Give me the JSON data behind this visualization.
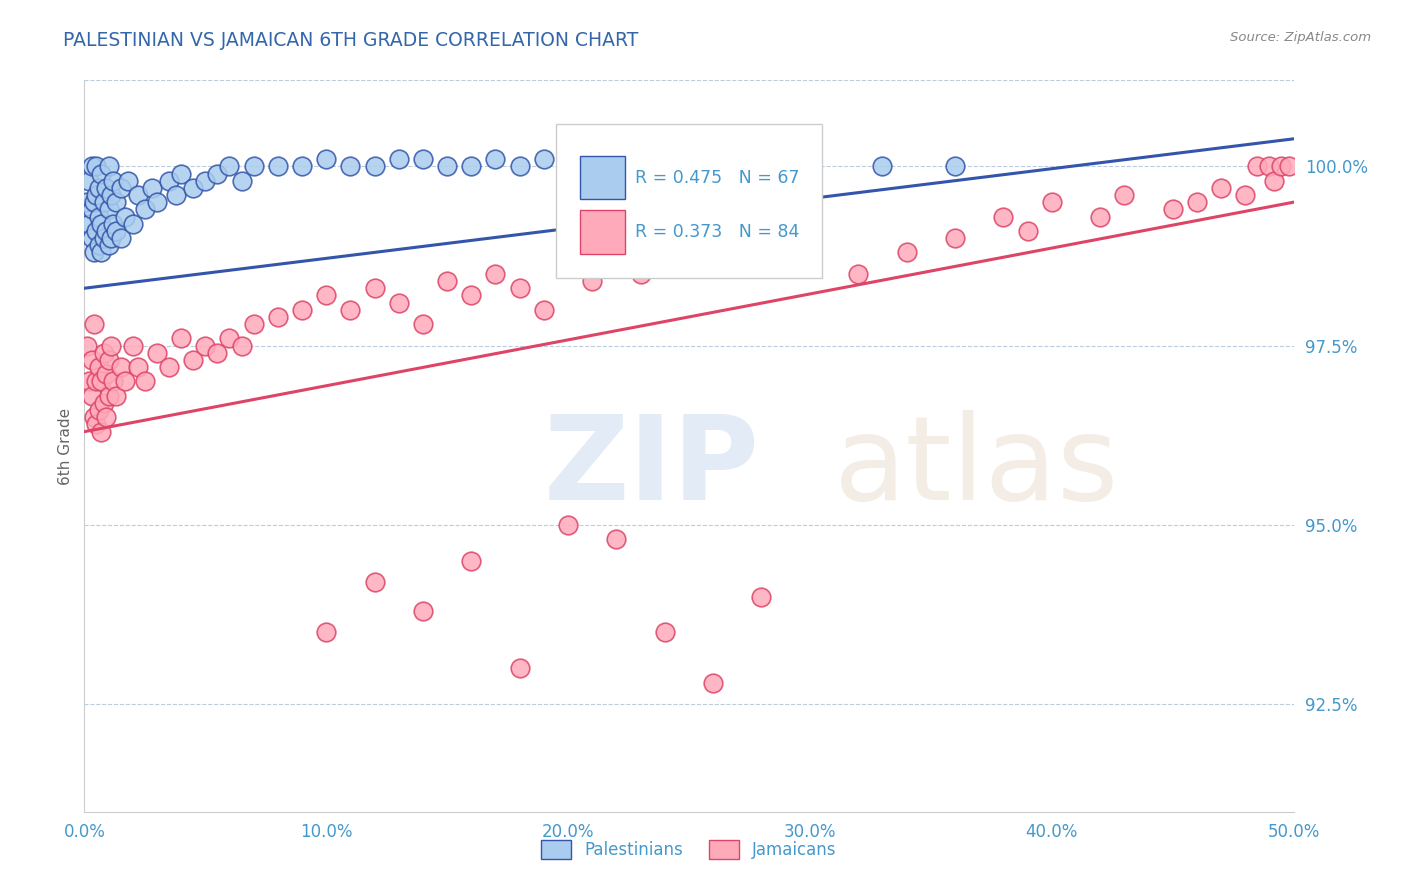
{
  "title": "PALESTINIAN VS JAMAICAN 6TH GRADE CORRELATION CHART",
  "source_text": "Source: ZipAtlas.com",
  "ylabel": "6th Grade",
  "xlim": [
    0.0,
    50.0
  ],
  "ylim": [
    91.0,
    101.2
  ],
  "yticks": [
    92.5,
    95.0,
    97.5,
    100.0
  ],
  "xticks": [
    0.0,
    10.0,
    20.0,
    30.0,
    40.0,
    50.0
  ],
  "xtick_labels": [
    "0.0%",
    "10.0%",
    "20.0%",
    "30.0%",
    "40.0%",
    "50.0%"
  ],
  "ytick_labels": [
    "92.5%",
    "95.0%",
    "97.5%",
    "100.0%"
  ],
  "blue_color": "#AACCEE",
  "pink_color": "#FFAABB",
  "blue_line_color": "#3355AA",
  "pink_line_color": "#DD4466",
  "axis_color": "#4499CC",
  "title_color": "#3366AA",
  "R_blue": 0.475,
  "N_blue": 67,
  "R_pink": 0.373,
  "N_pink": 84,
  "blue_trend_x0": 0,
  "blue_trend_y0": 98.3,
  "blue_trend_x1": 42,
  "blue_trend_y1": 100.05,
  "pink_trend_x0": 0,
  "pink_trend_y0": 96.3,
  "pink_trend_x1": 50,
  "pink_trend_y1": 99.5,
  "blue_x": [
    0.1,
    0.2,
    0.2,
    0.3,
    0.3,
    0.3,
    0.4,
    0.4,
    0.5,
    0.5,
    0.5,
    0.6,
    0.6,
    0.6,
    0.7,
    0.7,
    0.7,
    0.8,
    0.8,
    0.9,
    0.9,
    1.0,
    1.0,
    1.0,
    1.1,
    1.1,
    1.2,
    1.2,
    1.3,
    1.3,
    1.5,
    1.5,
    1.7,
    1.8,
    2.0,
    2.2,
    2.5,
    2.8,
    3.0,
    3.5,
    3.8,
    4.0,
    4.5,
    5.0,
    5.5,
    6.0,
    6.5,
    7.0,
    8.0,
    9.0,
    10.0,
    11.0,
    12.0,
    13.0,
    14.0,
    15.0,
    16.0,
    17.0,
    18.0,
    19.0,
    20.0,
    22.0,
    25.0,
    28.0,
    30.0,
    33.0,
    36.0
  ],
  "blue_y": [
    99.5,
    99.2,
    99.8,
    99.0,
    99.4,
    100.0,
    98.8,
    99.5,
    99.1,
    99.6,
    100.0,
    98.9,
    99.3,
    99.7,
    98.8,
    99.2,
    99.9,
    99.0,
    99.5,
    99.1,
    99.7,
    98.9,
    99.4,
    100.0,
    99.0,
    99.6,
    99.2,
    99.8,
    99.1,
    99.5,
    99.0,
    99.7,
    99.3,
    99.8,
    99.2,
    99.6,
    99.4,
    99.7,
    99.5,
    99.8,
    99.6,
    99.9,
    99.7,
    99.8,
    99.9,
    100.0,
    99.8,
    100.0,
    100.0,
    100.0,
    100.1,
    100.0,
    100.0,
    100.1,
    100.1,
    100.0,
    100.0,
    100.1,
    100.0,
    100.1,
    100.1,
    100.0,
    100.0,
    100.1,
    100.1,
    100.0,
    100.0
  ],
  "pink_x": [
    0.1,
    0.2,
    0.3,
    0.3,
    0.4,
    0.4,
    0.5,
    0.5,
    0.6,
    0.6,
    0.7,
    0.7,
    0.8,
    0.8,
    0.9,
    0.9,
    1.0,
    1.0,
    1.1,
    1.2,
    1.3,
    1.5,
    1.7,
    2.0,
    2.2,
    2.5,
    3.0,
    3.5,
    4.0,
    4.5,
    5.0,
    5.5,
    6.0,
    6.5,
    7.0,
    8.0,
    9.0,
    10.0,
    11.0,
    12.0,
    13.0,
    14.0,
    15.0,
    16.0,
    17.0,
    18.0,
    19.0,
    20.0,
    21.0,
    22.0,
    23.0,
    24.0,
    25.0,
    26.0,
    27.0,
    28.0,
    30.0,
    32.0,
    34.0,
    36.0,
    38.0,
    39.0,
    40.0,
    42.0,
    43.0,
    45.0,
    46.0,
    47.0,
    48.0,
    48.5,
    49.0,
    49.2,
    49.5,
    49.8,
    10.0,
    12.0,
    14.0,
    16.0,
    18.0,
    20.0,
    22.0,
    24.0,
    26.0,
    28.0
  ],
  "pink_y": [
    97.5,
    97.0,
    96.8,
    97.3,
    96.5,
    97.8,
    97.0,
    96.4,
    97.2,
    96.6,
    97.0,
    96.3,
    97.4,
    96.7,
    97.1,
    96.5,
    97.3,
    96.8,
    97.5,
    97.0,
    96.8,
    97.2,
    97.0,
    97.5,
    97.2,
    97.0,
    97.4,
    97.2,
    97.6,
    97.3,
    97.5,
    97.4,
    97.6,
    97.5,
    97.8,
    97.9,
    98.0,
    98.2,
    98.0,
    98.3,
    98.1,
    97.8,
    98.4,
    98.2,
    98.5,
    98.3,
    98.0,
    98.6,
    98.4,
    98.7,
    98.5,
    98.9,
    98.7,
    99.0,
    98.8,
    99.1,
    99.2,
    98.5,
    98.8,
    99.0,
    99.3,
    99.1,
    99.5,
    99.3,
    99.6,
    99.4,
    99.5,
    99.7,
    99.6,
    100.0,
    100.0,
    99.8,
    100.0,
    100.0,
    93.5,
    94.2,
    93.8,
    94.5,
    93.0,
    95.0,
    94.8,
    93.5,
    92.8,
    94.0
  ]
}
